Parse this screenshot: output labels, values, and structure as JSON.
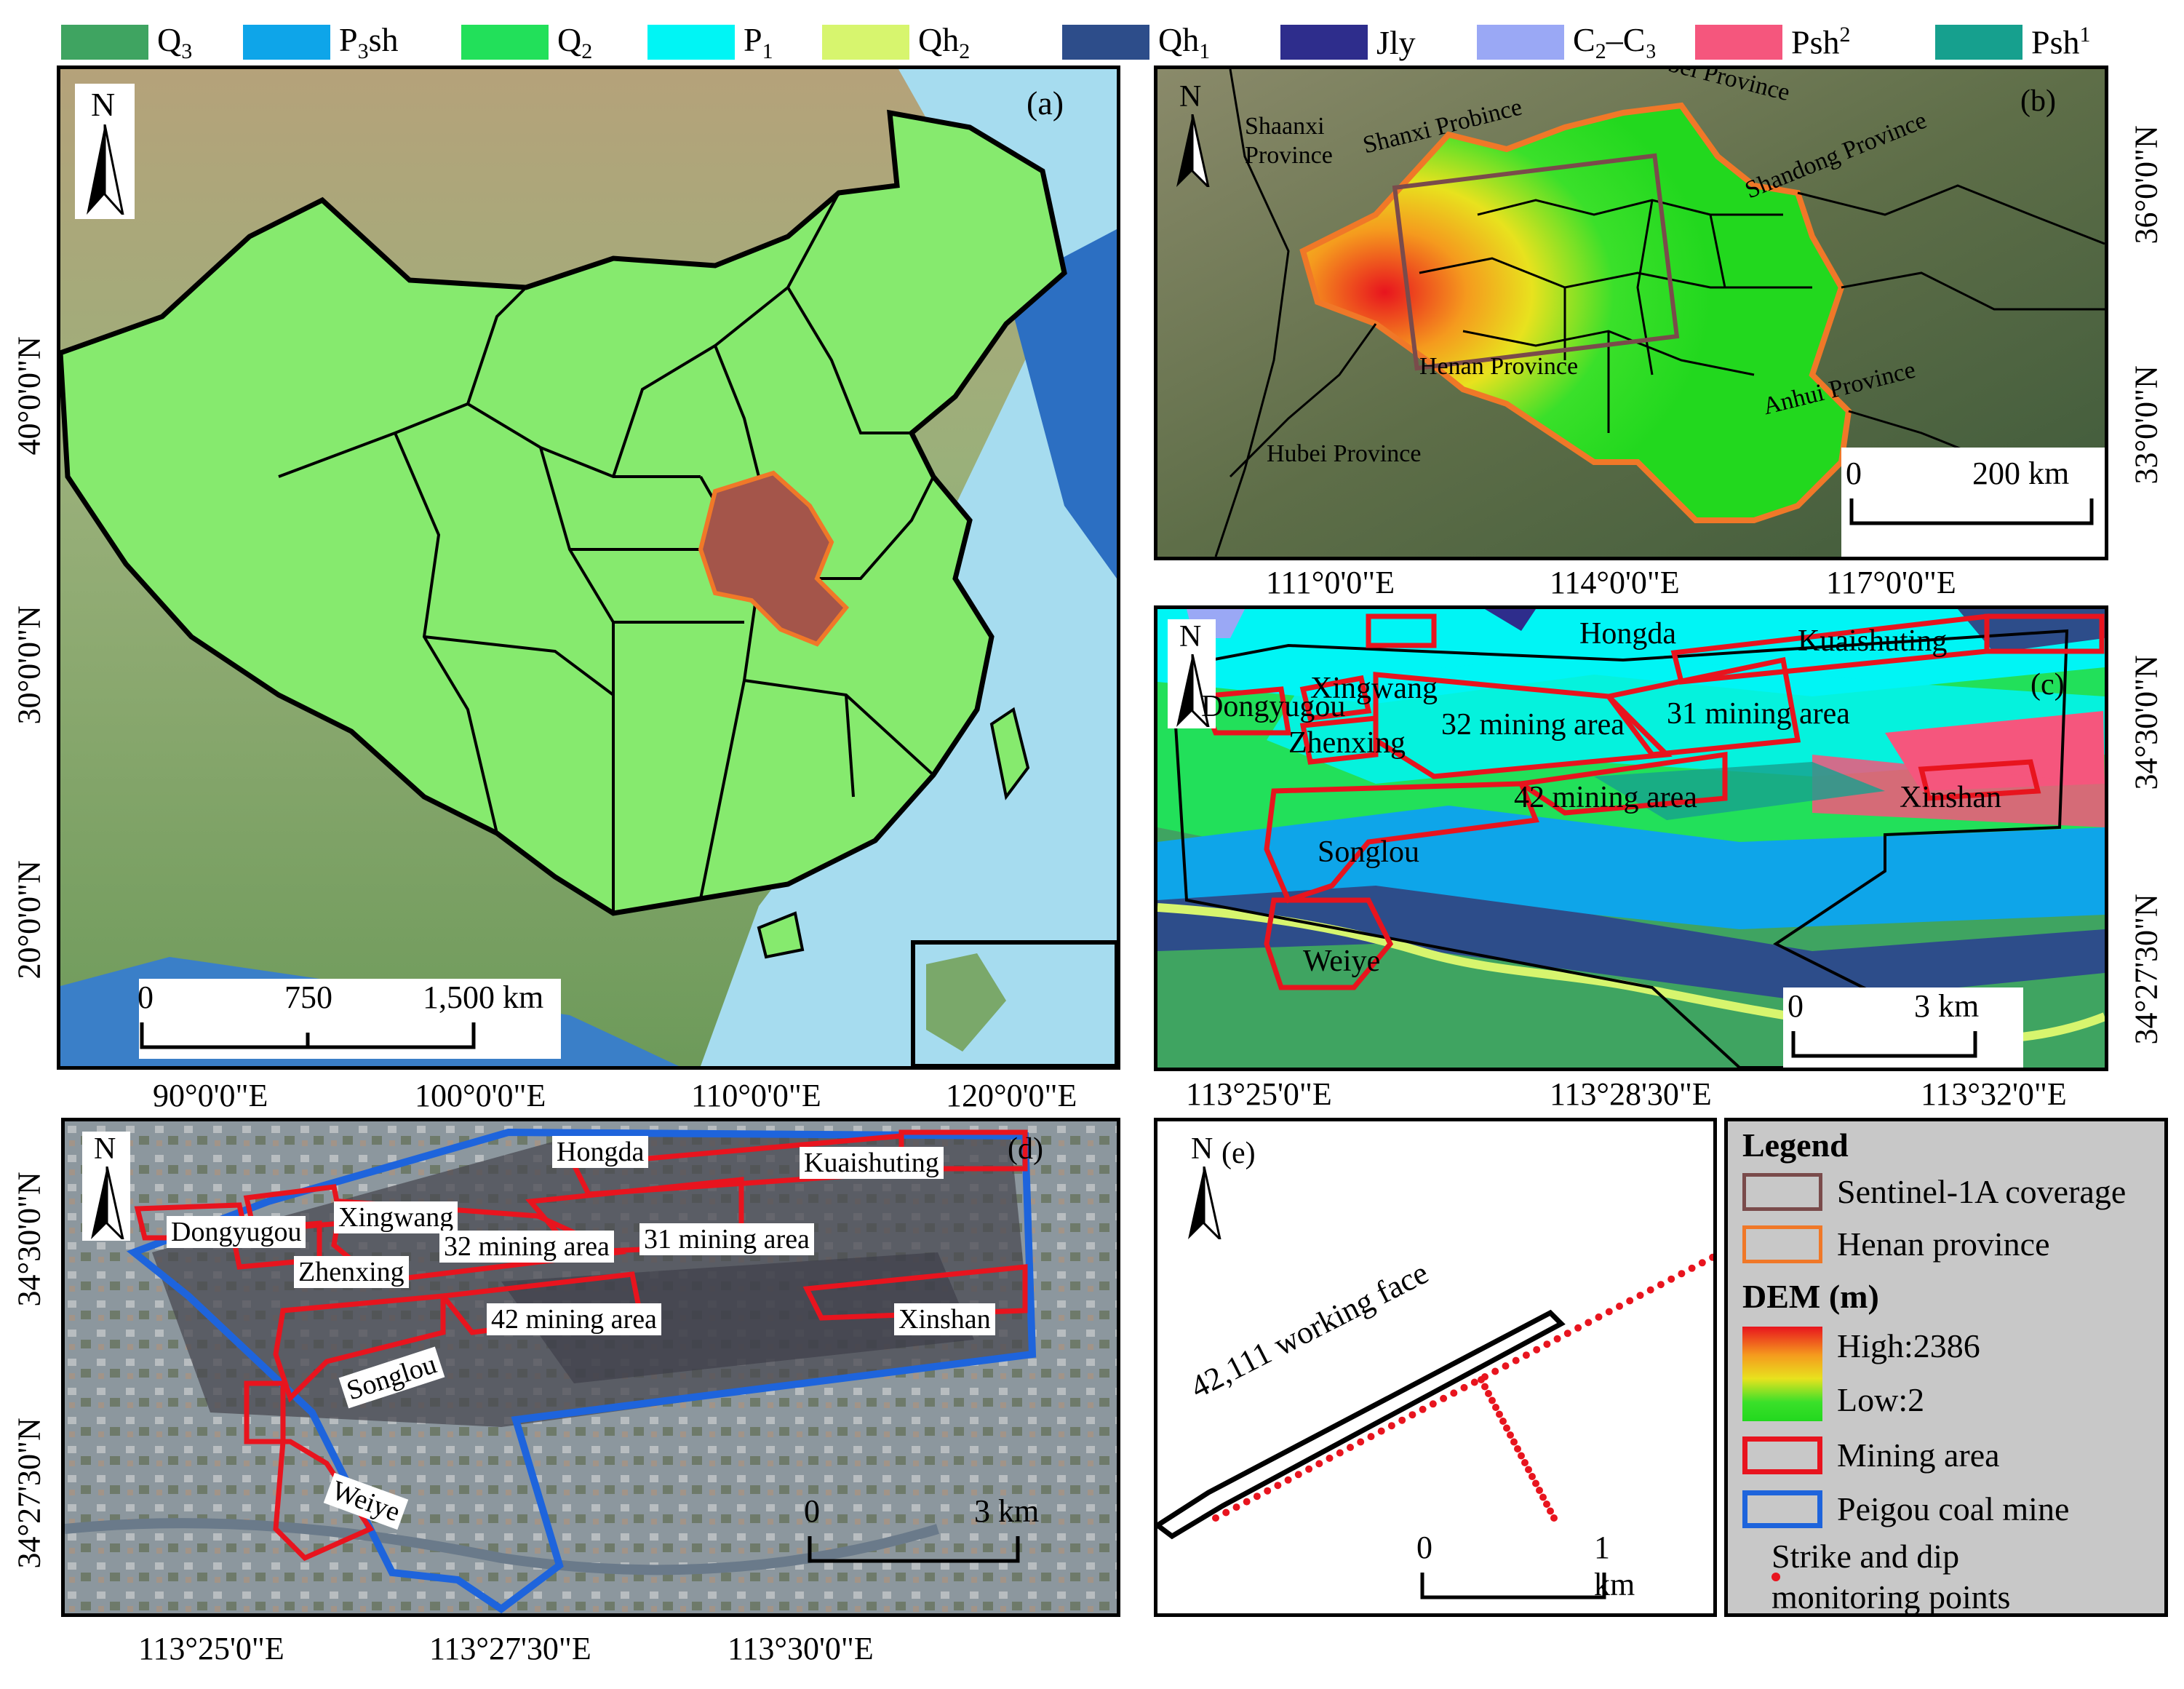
{
  "geology_legend": [
    {
      "label_base": "Q",
      "label_sub": "3",
      "label_sup": "",
      "label_rest": "",
      "color": "#3fa461"
    },
    {
      "label_base": "P",
      "label_sub": "3",
      "label_sup": "",
      "label_rest": "sh",
      "color": "#0ea5e9"
    },
    {
      "label_base": "Q",
      "label_sub": "2",
      "label_sup": "",
      "label_rest": "",
      "color": "#22e05a"
    },
    {
      "label_base": "P",
      "label_sub": "1",
      "label_sup": "",
      "label_rest": "",
      "color": "#00f5f5"
    },
    {
      "label_base": "Qh",
      "label_sub": "2",
      "label_sup": "",
      "label_rest": "",
      "color": "#d7f56e"
    },
    {
      "label_base": "Qh",
      "label_sub": "1",
      "label_sup": "",
      "label_rest": "",
      "color": "#2d4d8a"
    },
    {
      "label_base": "Jly",
      "label_sub": "",
      "label_sup": "",
      "label_rest": "",
      "color": "#2e2d8c"
    },
    {
      "label_base": "C",
      "label_sub": "2",
      "label_sup": "",
      "label_rest": "–C₃",
      "color": "#9aa8f5"
    },
    {
      "label_base": "Psh",
      "label_sub": "",
      "label_sup": "2",
      "label_rest": "",
      "color": "#f5567d"
    },
    {
      "label_base": "Psh",
      "label_sub": "",
      "label_sup": "1",
      "label_rest": "",
      "color": "#16a08e"
    }
  ],
  "panel_a": {
    "letter": "(a)",
    "lat_labels": [
      "40°0'0\"N",
      "30°0'0\"N",
      "20°0'0\"N"
    ],
    "lon_labels": [
      "90°0'0\"E",
      "100°0'0\"E",
      "110°0'0\"E",
      "120°0'0\"E"
    ],
    "scale": {
      "zero": "0",
      "mid": "750",
      "end": "1,500 km"
    }
  },
  "panel_b": {
    "letter": "(b)",
    "lat_labels": [
      "36°0'0\"N",
      "33°0'0\"N"
    ],
    "lon_labels": [
      "111°0'0\"E",
      "114°0'0\"E",
      "117°0'0\"E"
    ],
    "places": [
      "Shaanxi",
      "Province",
      "Shanxi Probince",
      "Shandong Province",
      "Henan Province",
      "Anhui Province",
      "Hubei Province",
      "bei Province"
    ],
    "scale": {
      "zero": "0",
      "end": "200 km"
    }
  },
  "panel_c": {
    "letter": "(c)",
    "lat_labels": [
      "34°30'0\"N",
      "34°27'30\"N"
    ],
    "lon_labels": [
      "113°25'0\"E",
      "113°28'30\"E",
      "113°32'0\"E"
    ],
    "places": [
      "Hongda",
      "Kuaishuting",
      "Dongyugou",
      "Xingwang",
      "Zhenxing",
      "32 mining area",
      "31 mining area",
      "42 mining area",
      "Xinshan",
      "Songlou",
      "Weiye"
    ],
    "scale": {
      "zero": "0",
      "end": "3 km"
    }
  },
  "panel_d": {
    "letter": "(d)",
    "lat_labels": [
      "34°30'0\"N",
      "34°27'30\"N"
    ],
    "lon_labels": [
      "113°25'0\"E",
      "113°27'30\"E",
      "113°30'0\"E"
    ],
    "places": [
      "Hongda",
      "Kuaishuting",
      "Xingwang",
      "Dongyugou",
      "Zhenxing",
      "32 mining area",
      "31 mining area",
      "42 mining area",
      "Xinshan",
      "Songlou",
      "Weiye"
    ],
    "scale": {
      "zero": "0",
      "end": "3 km"
    }
  },
  "panel_e": {
    "letter": "(e)",
    "working_face": "42,111 working face",
    "scale": {
      "zero": "0",
      "end": "1 km"
    }
  },
  "north_label": "N",
  "map_legend": {
    "title": "Legend",
    "sentinel": "Sentinel-1A coverage",
    "henan": "Henan province",
    "dem_title": "DEM (m)",
    "dem_high": "High:2386",
    "dem_low": "Low:2",
    "mining": "Mining area",
    "peigou": "Peigou coal mine",
    "points_line1": "Strike and dip",
    "points_line2": "monitoring points",
    "colors": {
      "sentinel": "#7a4b4b",
      "henan": "#f07828",
      "mining": "#e8141e",
      "peigou": "#1e64dc",
      "points": "#e8141e"
    }
  }
}
